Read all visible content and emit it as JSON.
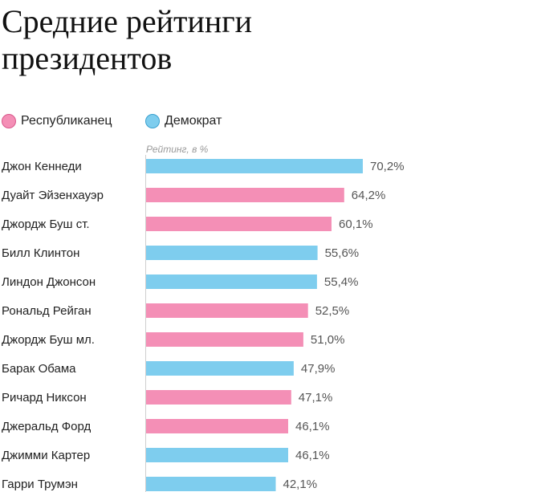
{
  "title": "Средние рейтинги президентов",
  "legend": [
    {
      "label": "Республиканец",
      "color": "#f48fb6",
      "border": "#d9568a"
    },
    {
      "label": "Демократ",
      "color": "#7ecdee",
      "border": "#3aa0cf"
    }
  ],
  "chart_data": {
    "type": "bar",
    "orientation": "horizontal",
    "axis_note": "Рейтинг, в %",
    "categories": [
      "Джон Кеннеди",
      "Дуайт Эйзенхауэр",
      "Джордж Буш ст.",
      "Билл Клинтон",
      "Линдон Джонсон",
      "Рональд Рейган",
      "Джордж Буш мл.",
      "Барак Обама",
      "Ричард Никсон",
      "Джеральд Форд",
      "Джимми Картер",
      "Гарри Трумэн"
    ],
    "values": [
      70.2,
      64.2,
      60.1,
      55.6,
      55.4,
      52.5,
      51.0,
      47.9,
      47.1,
      46.1,
      46.1,
      42.1
    ],
    "labels": [
      "70,2%",
      "64,2%",
      "60,1%",
      "55,6%",
      "55,4%",
      "52,5%",
      "51,0%",
      "47,9%",
      "47,1%",
      "46,1%",
      "46,1%",
      "42,1%"
    ],
    "party": [
      "Демократ",
      "Республиканец",
      "Республиканец",
      "Демократ",
      "Демократ",
      "Республиканец",
      "Республиканец",
      "Демократ",
      "Республиканец",
      "Республиканец",
      "Демократ",
      "Демократ"
    ],
    "colors": {
      "Республиканец": "#f48fb6",
      "Демократ": "#7ecdee"
    },
    "xlim": [
      0,
      70.2
    ]
  }
}
